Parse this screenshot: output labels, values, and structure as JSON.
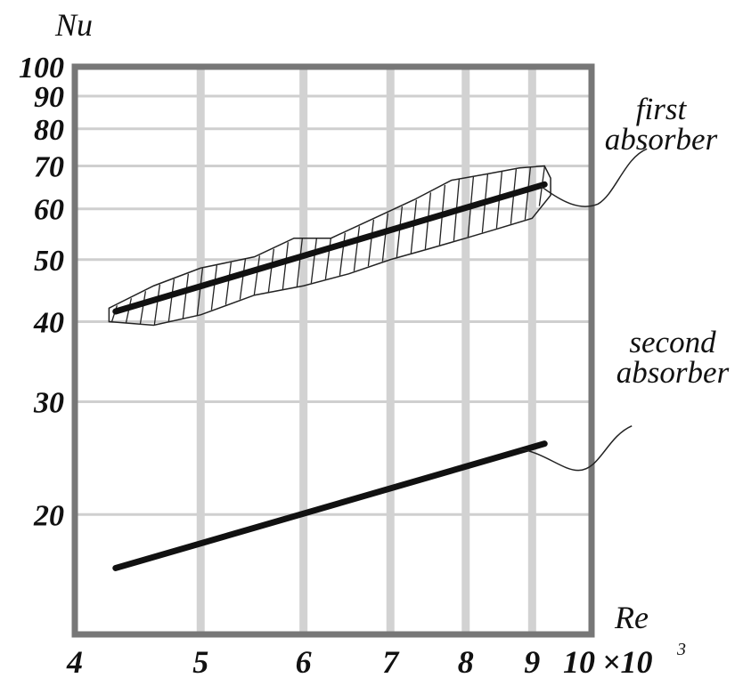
{
  "chart_data": {
    "type": "line",
    "title": "",
    "xlabel": "Re",
    "ylabel": "Nu",
    "x_scale": "log",
    "y_scale": "log",
    "xlim": [
      4,
      10
    ],
    "ylim": [
      13,
      100
    ],
    "x_ticks": [
      "4",
      "5",
      "6",
      "7",
      "8",
      "9",
      "10"
    ],
    "x_tick_values": [
      4,
      5,
      6,
      7,
      8,
      9,
      10
    ],
    "x_multiplier_text": "×10",
    "x_multiplier_exp": "3",
    "y_ticks": [
      "20",
      "30",
      "40",
      "50",
      "60",
      "70",
      "80",
      "90",
      "100"
    ],
    "y_tick_values": [
      20,
      30,
      40,
      50,
      60,
      70,
      80,
      90,
      100
    ],
    "grid": true,
    "series": [
      {
        "name": "first absorber",
        "legend_lines": [
          "first",
          "absorber"
        ],
        "x": [
          4.3,
          9.2
        ],
        "y": [
          41.5,
          65.5
        ],
        "band": {
          "upper": [
            [
              4.25,
              42
            ],
            [
              4.6,
              45.5
            ],
            [
              5.0,
              48.5
            ],
            [
              5.5,
              50.5
            ],
            [
              5.9,
              54
            ],
            [
              6.3,
              54
            ],
            [
              6.8,
              58
            ],
            [
              7.3,
              62
            ],
            [
              7.8,
              66.5
            ],
            [
              8.3,
              68
            ],
            [
              8.8,
              69.5
            ],
            [
              9.2,
              70
            ],
            [
              9.3,
              67
            ]
          ],
          "lower": [
            [
              4.25,
              40
            ],
            [
              4.6,
              39.5
            ],
            [
              5.0,
              41
            ],
            [
              5.5,
              44
            ],
            [
              6.0,
              45.5
            ],
            [
              6.5,
              47.5
            ],
            [
              7.0,
              50
            ],
            [
              7.5,
              52
            ],
            [
              8.0,
              54
            ],
            [
              8.5,
              56
            ],
            [
              9.0,
              58
            ],
            [
              9.3,
              63
            ]
          ]
        },
        "color": "#111111"
      },
      {
        "name": "second absorber",
        "legend_lines": [
          "second",
          "absorber"
        ],
        "x": [
          4.3,
          9.2
        ],
        "y": [
          16.5,
          25.8
        ],
        "color": "#111111"
      }
    ]
  }
}
